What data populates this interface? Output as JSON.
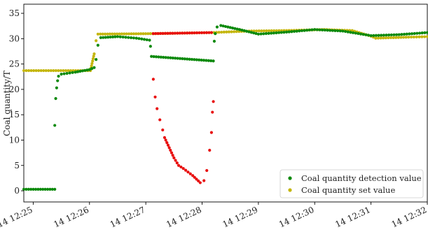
{
  "chart_data": {
    "type": "scatter",
    "title": "",
    "xlabel": "",
    "ylabel": "Coal quantity/T",
    "ylim": [
      -2.2,
      36.8
    ],
    "xlim": [
      "12:24:50",
      "12:32:00"
    ],
    "yticks": [
      0,
      5,
      10,
      15,
      20,
      25,
      30,
      35
    ],
    "xticks": [
      "14 12:25",
      "14 12:26",
      "14 12:27",
      "14 12:28",
      "14 12:29",
      "14 12:30",
      "14 12:31",
      "14 12:32"
    ],
    "grid": false,
    "legend_position": "bottom-right",
    "series": [
      {
        "name": "Coal quantity set value",
        "color": "#c4b60e",
        "points": [
          [
            "12:24:50",
            23.7
          ],
          [
            "12:26:01",
            23.7
          ],
          [
            "12:26:05",
            27.0
          ],
          [
            "12:26:07",
            29.6
          ],
          [
            "12:26:09",
            30.9
          ],
          [
            "12:27:10",
            31.0
          ],
          [
            "12:28:10",
            31.2
          ],
          [
            "12:28:50",
            31.5
          ],
          [
            "12:29:30",
            31.6
          ],
          [
            "12:30:10",
            31.8
          ],
          [
            "12:30:40",
            31.6
          ],
          [
            "12:31:00",
            30.5
          ],
          [
            "12:31:05",
            30.1
          ],
          [
            "12:31:40",
            30.3
          ],
          [
            "12:32:00",
            30.4
          ]
        ]
      },
      {
        "name": "Coal quantity detection value",
        "color": "#0e8a0e",
        "points": [
          [
            "12:24:50",
            0.3
          ],
          [
            "12:25:23",
            0.3
          ],
          [
            "12:25:23",
            12.9
          ],
          [
            "12:25:24",
            18.2
          ],
          [
            "12:25:25",
            20.3
          ],
          [
            "12:25:26",
            21.7
          ],
          [
            "12:25:27",
            22.6
          ],
          [
            "12:25:30",
            23.0
          ],
          [
            "12:25:45",
            23.4
          ],
          [
            "12:26:00",
            23.9
          ],
          [
            "12:26:05",
            24.3
          ],
          [
            "12:26:07",
            25.9
          ],
          [
            "12:26:09",
            28.7
          ],
          [
            "12:26:12",
            30.2
          ],
          [
            "12:26:30",
            30.4
          ],
          [
            "12:26:50",
            30.1
          ],
          [
            "12:27:04",
            29.7
          ],
          [
            "12:27:05",
            28.5
          ],
          [
            "12:27:06",
            26.5
          ],
          [
            "12:28:12",
            25.6
          ],
          [
            "12:28:13",
            29.5
          ],
          [
            "12:28:14",
            31.0
          ],
          [
            "12:28:16",
            32.3
          ],
          [
            "12:28:20",
            32.6
          ],
          [
            "12:28:40",
            31.8
          ],
          [
            "12:29:00",
            30.9
          ],
          [
            "12:29:30",
            31.3
          ],
          [
            "12:30:00",
            31.8
          ],
          [
            "12:30:30",
            31.5
          ],
          [
            "12:31:00",
            30.6
          ],
          [
            "12:31:30",
            30.8
          ],
          [
            "12:32:00",
            31.2
          ]
        ]
      },
      {
        "name": "",
        "color": "#e81010",
        "points": [
          [
            "12:27:08",
            31.0
          ],
          [
            "12:28:10",
            31.2
          ],
          [
            "12:27:08",
            22.0
          ],
          [
            "12:27:10",
            18.5
          ],
          [
            "12:27:12",
            16.2
          ],
          [
            "12:27:15",
            14.0
          ],
          [
            "12:27:18",
            12.0
          ],
          [
            "12:27:20",
            10.5
          ],
          [
            "12:27:25",
            8.5
          ],
          [
            "12:27:30",
            6.5
          ],
          [
            "12:27:35",
            5.0
          ],
          [
            "12:27:40",
            4.4
          ],
          [
            "12:27:50",
            3.0
          ],
          [
            "12:27:58",
            1.6
          ],
          [
            "12:28:02",
            2.0
          ],
          [
            "12:28:05",
            4.0
          ],
          [
            "12:28:08",
            8.0
          ],
          [
            "12:28:10",
            11.5
          ],
          [
            "12:28:11",
            15.5
          ],
          [
            "12:28:12",
            17.6
          ]
        ]
      }
    ]
  }
}
